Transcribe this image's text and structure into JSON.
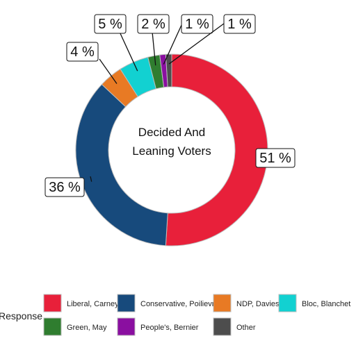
{
  "chart_data": {
    "type": "pie",
    "donut": true,
    "center_text": [
      "Decided And",
      "Leaning Voters"
    ],
    "series": [
      {
        "name": "Liberal, Carney",
        "value": 51,
        "label": "51 %",
        "color": "#E8203A"
      },
      {
        "name": "Conservative, Poilievre",
        "value": 36,
        "label": "36 %",
        "color": "#174A7C"
      },
      {
        "name": "NDP, Davies",
        "value": 4,
        "label": "4 %",
        "color": "#E87A24"
      },
      {
        "name": "Bloc, Blanchet",
        "value": 5,
        "label": "5 %",
        "color": "#12D1D1"
      },
      {
        "name": "Green, May",
        "value": 2,
        "label": "2 %",
        "color": "#2F7D2F"
      },
      {
        "name": "People's, Bernier",
        "value": 1,
        "label": "1 %",
        "color": "#8A0FA0"
      },
      {
        "name": "Other",
        "value": 1,
        "label": "1 %",
        "color": "#4D4D4D"
      }
    ],
    "legend": {
      "title": "Response",
      "position": "bottom"
    }
  }
}
